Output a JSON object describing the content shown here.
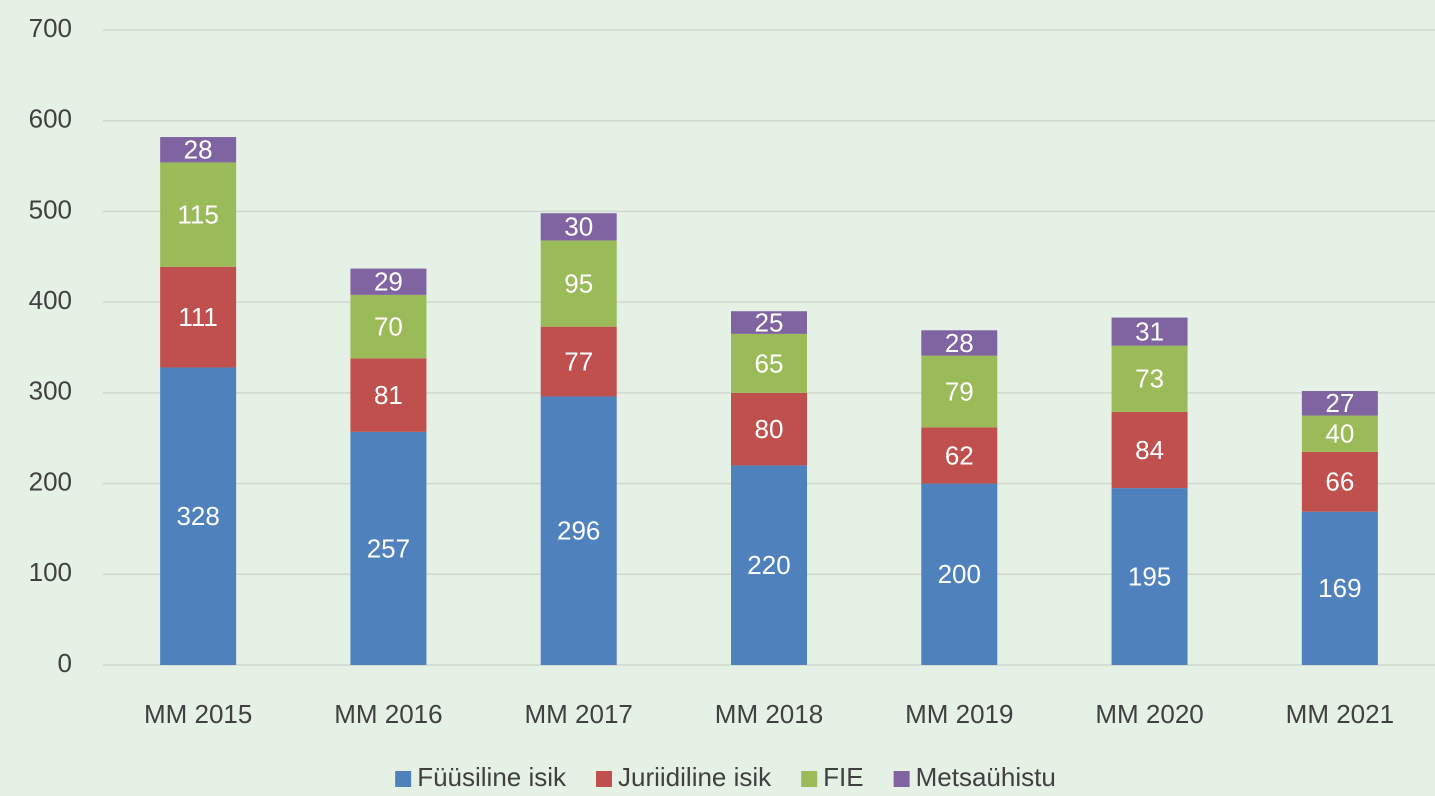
{
  "chart_data": {
    "type": "stacked_bar",
    "categories": [
      "MM 2015",
      "MM 2016",
      "MM 2017",
      "MM 2018",
      "MM 2019",
      "MM 2020",
      "MM 2021"
    ],
    "series": [
      {
        "name": "Füüsiline isik",
        "color": "#4f81bd",
        "values": [
          328,
          257,
          296,
          220,
          200,
          195,
          169
        ]
      },
      {
        "name": "Juriidiline isik",
        "color": "#c0504d",
        "values": [
          111,
          81,
          77,
          80,
          62,
          84,
          66
        ]
      },
      {
        "name": "FIE",
        "color": "#9bbb59",
        "values": [
          115,
          70,
          95,
          65,
          79,
          73,
          40
        ]
      },
      {
        "name": "Metsaühistu",
        "color": "#8064a2",
        "values": [
          28,
          29,
          30,
          25,
          28,
          31,
          27
        ]
      }
    ],
    "ylim": [
      0,
      700
    ],
    "yticks": [
      0,
      100,
      200,
      300,
      400,
      500,
      600,
      700
    ],
    "grid": true,
    "legend": "bottom"
  }
}
